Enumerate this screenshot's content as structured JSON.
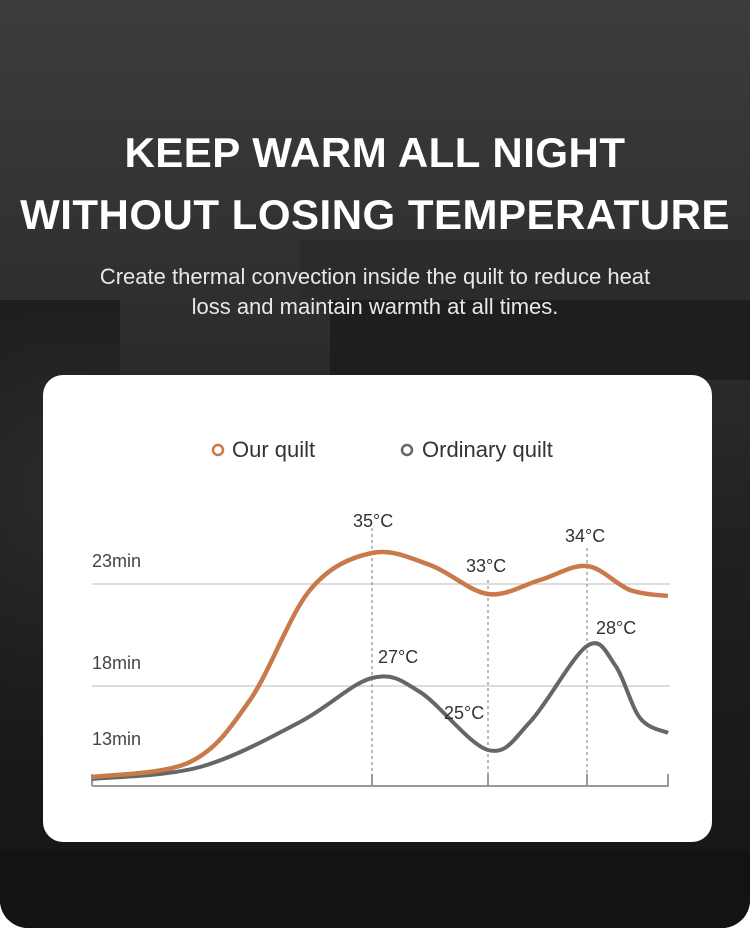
{
  "header": {
    "title_line1": "KEEP WARM ALL NIGHT",
    "title_line2": "WITHOUT LOSING TEMPERATURE",
    "subtitle_line1": "Create thermal convection inside the quilt to reduce heat",
    "subtitle_line2": "loss and maintain warmth at all times."
  },
  "chart_data": {
    "type": "line",
    "legend": [
      {
        "name": "Our quilt",
        "color": "#c97a4b"
      },
      {
        "name": "Ordinary quilt",
        "color": "#666666"
      }
    ],
    "legend_placement": "top",
    "y_tick_labels": [
      "23min",
      "18min",
      "13min"
    ],
    "grid": "horizontal lines at 23min and 18min",
    "annotations": {
      "our_quilt": [
        "35°C",
        "33°C",
        "34°C"
      ],
      "ordinary_quilt": [
        "27°C",
        "25°C",
        "28°C"
      ]
    },
    "series": [
      {
        "name": "Our quilt",
        "key_points": [
          {
            "label": "35°C",
            "type": "peak"
          },
          {
            "label": "33°C",
            "type": "trough"
          },
          {
            "label": "34°C",
            "type": "peak"
          }
        ]
      },
      {
        "name": "Ordinary quilt",
        "key_points": [
          {
            "label": "27°C",
            "type": "peak"
          },
          {
            "label": "25°C",
            "type": "trough"
          },
          {
            "label": "28°C",
            "type": "peak"
          }
        ]
      }
    ]
  }
}
